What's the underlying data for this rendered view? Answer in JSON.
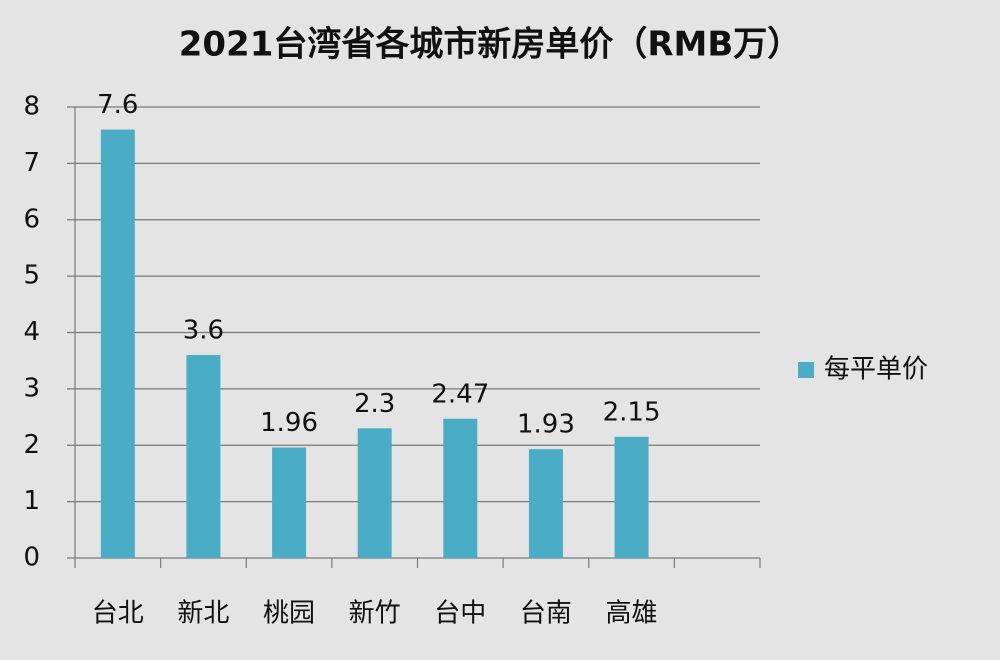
{
  "chart_data": {
    "type": "bar",
    "title": "2021台湾省各城市新房单价（RMB万）",
    "categories": [
      "台北",
      "新北",
      "桃园",
      "新竹",
      "台中",
      "台南",
      "高雄",
      null
    ],
    "series": [
      {
        "name": "每平单价",
        "color": "#4bacc6",
        "values": [
          7.6,
          3.6,
          1.96,
          2.3,
          2.47,
          1.93,
          2.15,
          null
        ]
      }
    ],
    "ylim": [
      0,
      8
    ],
    "yticks": [
      0,
      1,
      2,
      3,
      4,
      5,
      6,
      7,
      8
    ],
    "grid": true,
    "legend": "right"
  }
}
